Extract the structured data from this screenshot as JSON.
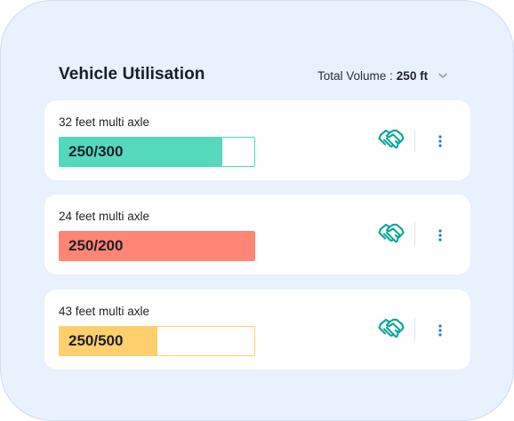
{
  "header": {
    "title": "Vehicle Utilisation",
    "volume_label": "Total Volume :",
    "volume_value": "250 ft"
  },
  "vehicles": [
    {
      "name": "32 feet multi axle",
      "load_text": "250/300",
      "used": 250,
      "capacity": 300,
      "fill_color": "#54d9bc",
      "border_color": "#54d9bc"
    },
    {
      "name": "24 feet multi axle",
      "load_text": "250/200",
      "used": 250,
      "capacity": 200,
      "fill_color": "#ff8577",
      "border_color": "#ff8577"
    },
    {
      "name": "43 feet multi axle",
      "load_text": "250/500",
      "used": 250,
      "capacity": 500,
      "fill_color": "#ffcf6e",
      "border_color": "#ffcf6e"
    }
  ],
  "icons": {
    "handshake": "handshake-icon",
    "more": "more-vertical-icon",
    "dropdown": "chevron-down-icon"
  },
  "colors": {
    "panel_bg": "#e9f1fd",
    "icon_teal": "#11a89a",
    "menu_blue": "#1f7bd8"
  }
}
